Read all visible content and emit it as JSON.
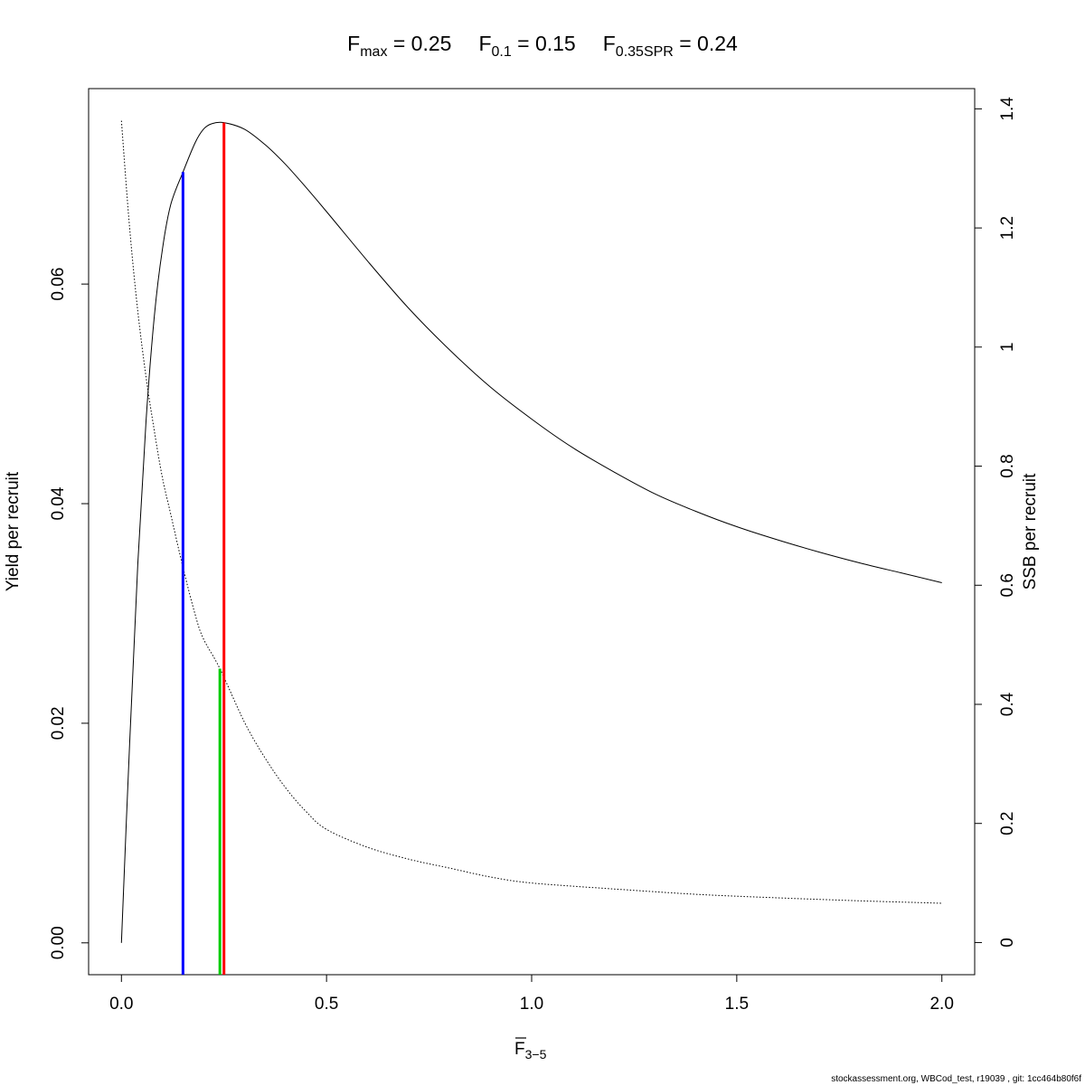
{
  "title": {
    "fmax": {
      "name": "F",
      "sub": "max",
      "value": " = 0.25"
    },
    "f01": {
      "name": "F",
      "sub": "0.1",
      "value": " = 0.15"
    },
    "fspr": {
      "name": "F",
      "sub": "0.35SPR",
      "value": " = 0.24"
    }
  },
  "xlabel": {
    "name": "F",
    "sub": "3−5"
  },
  "footer": "stockassessment.org, WBCod_test, r19039 , git: 1cc464b80f6f",
  "colors": {
    "fmax": "#ff0000",
    "f01": "#0000ff",
    "fspr": "#00cc00",
    "curves": "#000000"
  },
  "chart_data": {
    "type": "line",
    "xlabel": "F̅ 3−5",
    "ylabel": "Yield per recruit",
    "ylabel_right": "SSB per recruit",
    "xlim": [
      -0.08,
      2.08
    ],
    "ylim": [
      -0.0029,
      0.0778
    ],
    "ylim_right": [
      -0.054,
      1.434
    ],
    "xticks": [
      0.0,
      0.5,
      1.0,
      1.5,
      2.0
    ],
    "xtick_labels": [
      "0.0",
      "0.5",
      "1.0",
      "1.5",
      "2.0"
    ],
    "yticks": [
      0.0,
      0.02,
      0.04,
      0.06
    ],
    "ytick_labels": [
      "0.00",
      "0.02",
      "0.04",
      "0.06"
    ],
    "yticks_right": [
      0,
      0.2,
      0.4,
      0.6,
      0.8,
      1.0,
      1.2,
      1.4
    ],
    "ytick_labels_right": [
      "0",
      "0.2",
      "0.4",
      "0.6",
      "0.8",
      "1",
      "1.2",
      "1.4"
    ],
    "series": [
      {
        "axis": "left",
        "line": "solid",
        "x": [
          0,
          0.02,
          0.04,
          0.06,
          0.08,
          0.1,
          0.12,
          0.15,
          0.18,
          0.2,
          0.22,
          0.25,
          0.3,
          0.35,
          0.4,
          0.45,
          0.5,
          0.6,
          0.7,
          0.8,
          0.9,
          1.0,
          1.1,
          1.2,
          1.3,
          1.4,
          1.5,
          1.6,
          1.7,
          1.8,
          1.9,
          2.0
        ],
        "y": [
          0,
          0.0182,
          0.0345,
          0.0475,
          0.057,
          0.0632,
          0.0672,
          0.0702,
          0.0729,
          0.0741,
          0.0746,
          0.0747,
          0.0741,
          0.0727,
          0.0709,
          0.0688,
          0.0666,
          0.0621,
          0.0578,
          0.054,
          0.0506,
          0.0477,
          0.0451,
          0.0429,
          0.0409,
          0.0393,
          0.0379,
          0.0367,
          0.0356,
          0.0346,
          0.0337,
          0.0328
        ]
      },
      {
        "axis": "right",
        "line": "dotted",
        "x": [
          0,
          0.02,
          0.04,
          0.06,
          0.08,
          0.1,
          0.12,
          0.15,
          0.18,
          0.2,
          0.24,
          0.3,
          0.35,
          0.4,
          0.45,
          0.5,
          0.6,
          0.7,
          0.8,
          0.9,
          1.0,
          1.2,
          1.4,
          1.6,
          1.8,
          2.0
        ],
        "y": [
          1.38,
          1.2,
          1.06,
          0.95,
          0.86,
          0.78,
          0.72,
          0.63,
          0.55,
          0.51,
          0.46,
          0.37,
          0.31,
          0.26,
          0.22,
          0.19,
          0.16,
          0.14,
          0.125,
          0.11,
          0.1,
          0.09,
          0.081,
          0.075,
          0.07,
          0.066
        ]
      }
    ],
    "reference_lines": [
      {
        "name": "Fmax",
        "x": 0.25,
        "y_top": 0.0747,
        "axis": "left",
        "color": "#ff0000"
      },
      {
        "name": "F0.1",
        "x": 0.15,
        "y_top": 0.0702,
        "axis": "left",
        "color": "#0000ff"
      },
      {
        "name": "F0.35SPR",
        "x": 0.24,
        "y_top": 0.46,
        "axis": "right",
        "color": "#00cc00"
      }
    ]
  }
}
